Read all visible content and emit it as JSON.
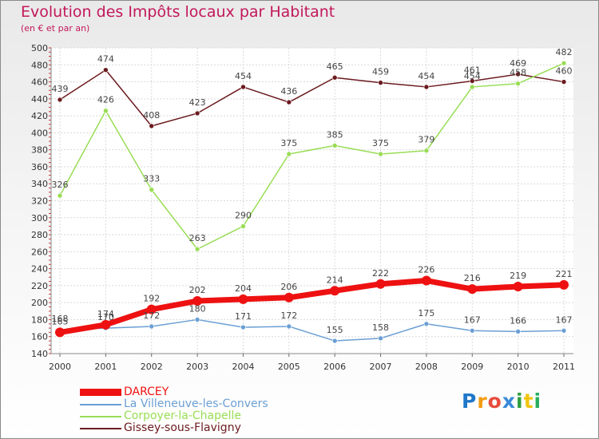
{
  "header": {
    "title": "Evolution des Impôts locaux par Habitant",
    "subtitle": "(en € et par an)"
  },
  "chart_data": {
    "type": "line",
    "title": "Evolution des Impôts locaux par Habitant",
    "ylabel": "(en € et par an)",
    "xlabel": "",
    "ylim": [
      140,
      500
    ],
    "y_ticks": [
      140,
      160,
      180,
      200,
      220,
      240,
      260,
      280,
      300,
      320,
      340,
      360,
      380,
      400,
      420,
      440,
      460,
      480,
      500
    ],
    "categories": [
      "2000",
      "2001",
      "2002",
      "2003",
      "2004",
      "2005",
      "2006",
      "2007",
      "2008",
      "2009",
      "2010",
      "2011"
    ],
    "grid": true,
    "legend_position": "bottom-left",
    "series": [
      {
        "name": "Gissey-sous-Flavigny",
        "color": "#6b1a1e",
        "values": [
          439,
          474,
          408,
          423,
          454,
          436,
          465,
          459,
          454,
          461,
          469,
          460
        ]
      },
      {
        "name": "Corpoyer-la-Chapelle",
        "color": "#99dd55",
        "values": [
          326,
          426,
          333,
          263,
          290,
          375,
          385,
          375,
          379,
          454,
          458,
          482
        ]
      },
      {
        "name": "La Villeneuve-les-Convers",
        "color": "#6b9fd4",
        "values": [
          168,
          170,
          172,
          180,
          171,
          172,
          155,
          158,
          175,
          167,
          166,
          167
        ]
      },
      {
        "name": "DARCEY",
        "color": "#ee1111",
        "values": [
          165,
          174,
          192,
          202,
          204,
          206,
          214,
          222,
          226,
          216,
          219,
          221
        ]
      }
    ],
    "legend_order": [
      "DARCEY",
      "La Villeneuve-les-Convers",
      "Corpoyer-la-Chapelle",
      "Gissey-sous-Flavigny"
    ]
  },
  "logo": {
    "letters": [
      "P",
      "r",
      "o",
      "x",
      "i",
      "t",
      "i"
    ],
    "colors": [
      "#1f77c9",
      "#f39c12",
      "#e74c3c",
      "#3b8ad9",
      "#2e9e3e",
      "#f1c40f",
      "#27ae60"
    ]
  }
}
